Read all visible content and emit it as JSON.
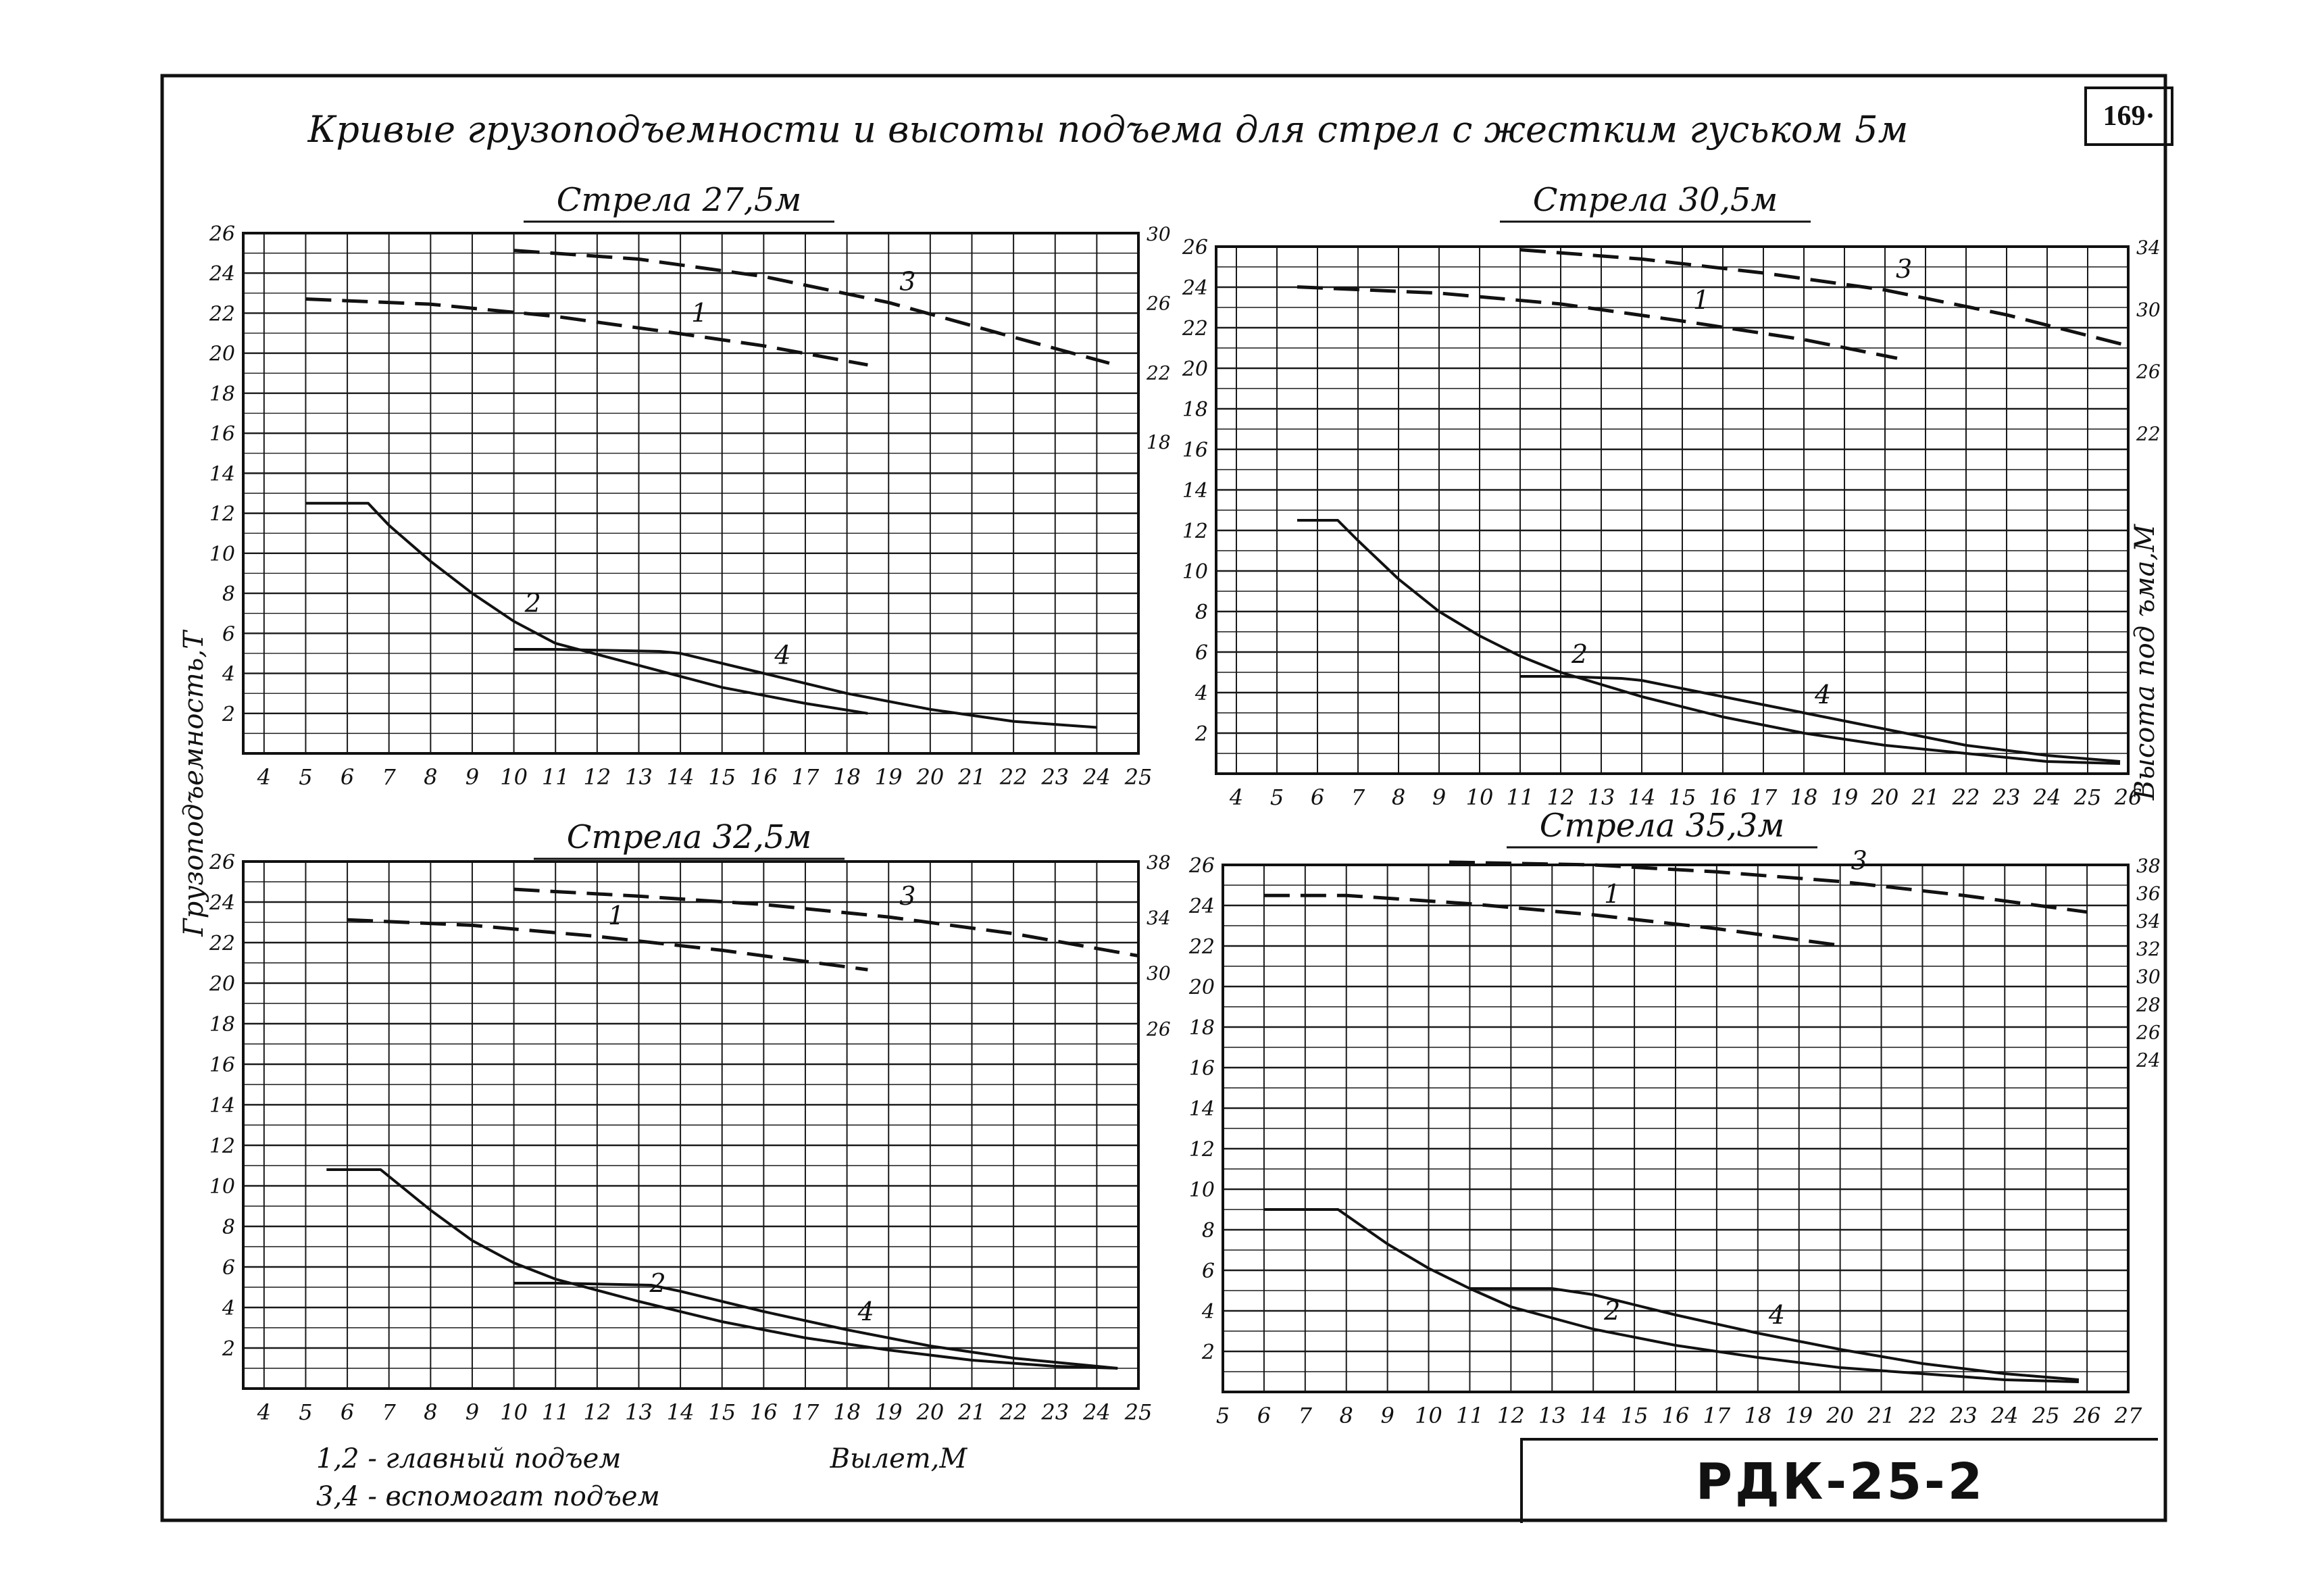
{
  "sheet": {
    "title": "Кривые грузоподъемности и высоты подъема для стрел с жестким гуськом 5м",
    "page_number": "169·",
    "code": "РДК-25-2",
    "ylabel_left": "Грузоподъемность,Т",
    "ylabel_right": "Высота под ъма,М",
    "xlabel": "Вылет,М",
    "legend_main": "1,2 - главный подъем",
    "legend_aux": "3,4 - вспомогат подъем",
    "colors": {
      "ink": "#111111",
      "grid": "#1a1a1a",
      "paper": "#ffffff"
    }
  },
  "chart_data": [
    {
      "type": "line",
      "title": "Стрела 27,5м",
      "xlabel": "Вылет,М",
      "ylabel": "Грузоподъемность,Т",
      "ylabel_right": "",
      "xlim": [
        3.5,
        25
      ],
      "ylim": [
        0,
        26
      ],
      "y2lim": [
        0,
        30
      ],
      "x_ticks": [
        4,
        5,
        6,
        7,
        8,
        9,
        10,
        11,
        12,
        13,
        14,
        15,
        16,
        17,
        18,
        19,
        20,
        21,
        22,
        23,
        24,
        25
      ],
      "y_ticks": [
        2,
        4,
        6,
        8,
        10,
        12,
        14,
        16,
        18,
        20,
        22,
        24,
        26
      ],
      "y2_ticks": [
        18,
        22,
        26,
        30
      ],
      "grid": true,
      "series": [
        {
          "name": "1",
          "axis": "right",
          "style": "dashed",
          "x": [
            5,
            8,
            11,
            14,
            16,
            18.5
          ],
          "y": [
            26.2,
            25.9,
            25.2,
            24.2,
            23.5,
            22.4
          ]
        },
        {
          "name": "2",
          "axis": "left",
          "style": "solid",
          "x": [
            5,
            6.5,
            7,
            8,
            9,
            10,
            11,
            13,
            15,
            17,
            18.5
          ],
          "y": [
            12.5,
            12.5,
            11.4,
            9.6,
            8,
            6.6,
            5.5,
            4.4,
            3.3,
            2.5,
            2
          ]
        },
        {
          "name": "3",
          "axis": "right",
          "style": "dashed",
          "x": [
            10,
            13,
            16,
            19,
            22,
            24.3
          ],
          "y": [
            29,
            28.5,
            27.5,
            26,
            24,
            22.5
          ]
        },
        {
          "name": "4",
          "axis": "left",
          "style": "solid",
          "x": [
            10,
            11,
            13.5,
            14,
            16,
            18,
            20,
            22,
            24
          ],
          "y": [
            5.2,
            5.2,
            5.1,
            5,
            4,
            3,
            2.2,
            1.6,
            1.3
          ]
        }
      ]
    },
    {
      "type": "line",
      "title": "Стрела 30,5м",
      "xlabel": "Вылет,М",
      "ylabel": "",
      "ylabel_right": "Высота под ъма,М",
      "xlim": [
        3.5,
        26
      ],
      "ylim": [
        0,
        26
      ],
      "y2lim": [
        0,
        34
      ],
      "x_ticks": [
        4,
        5,
        6,
        7,
        8,
        9,
        10,
        11,
        12,
        13,
        14,
        15,
        16,
        17,
        18,
        19,
        20,
        21,
        22,
        23,
        24,
        25,
        26
      ],
      "y_ticks": [
        2,
        4,
        6,
        8,
        10,
        12,
        14,
        16,
        18,
        20,
        22,
        24,
        26
      ],
      "y2_ticks": [
        22,
        26,
        30,
        34
      ],
      "grid": true,
      "series": [
        {
          "name": "1",
          "axis": "right",
          "style": "dashed",
          "x": [
            5.5,
            9,
            12,
            15,
            18,
            20.3
          ],
          "y": [
            31.4,
            31,
            30.3,
            29.2,
            28,
            26.8
          ]
        },
        {
          "name": "2",
          "axis": "left",
          "style": "solid",
          "x": [
            5.5,
            6.5,
            7,
            8,
            9,
            10,
            11,
            12,
            14,
            16,
            18,
            20,
            22,
            24,
            25.8
          ],
          "y": [
            12.5,
            12.5,
            11.5,
            9.6,
            8,
            6.8,
            5.8,
            5,
            3.8,
            2.8,
            2,
            1.4,
            1,
            0.6,
            0.5
          ]
        },
        {
          "name": "3",
          "axis": "right",
          "style": "dashed",
          "x": [
            11,
            14,
            17,
            20,
            23,
            26
          ],
          "y": [
            33.8,
            33.2,
            32.3,
            31.2,
            29.6,
            27.6
          ]
        },
        {
          "name": "4",
          "axis": "left",
          "style": "solid",
          "x": [
            11,
            12,
            13.5,
            14,
            16,
            18,
            20,
            22,
            24,
            25.8
          ],
          "y": [
            4.8,
            4.8,
            4.7,
            4.6,
            3.8,
            3,
            2.2,
            1.4,
            0.9,
            0.6
          ]
        }
      ]
    },
    {
      "type": "line",
      "title": "Стрела 32,5м",
      "xlabel": "Вылет,М",
      "ylabel": "Грузоподъемность,Т",
      "ylabel_right": "",
      "xlim": [
        3.5,
        25
      ],
      "ylim": [
        0,
        26
      ],
      "y2lim": [
        0,
        38
      ],
      "x_ticks": [
        4,
        5,
        6,
        7,
        8,
        9,
        10,
        11,
        12,
        13,
        14,
        15,
        16,
        17,
        18,
        19,
        20,
        21,
        22,
        23,
        24,
        25
      ],
      "y_ticks": [
        2,
        4,
        6,
        8,
        10,
        12,
        14,
        16,
        18,
        20,
        22,
        24,
        26
      ],
      "y2_ticks": [
        26,
        30,
        34,
        38
      ],
      "grid": true,
      "series": [
        {
          "name": "1",
          "axis": "right",
          "style": "dashed",
          "x": [
            6,
            9,
            12,
            15,
            18.5
          ],
          "y": [
            33.8,
            33.4,
            32.6,
            31.6,
            30.2
          ]
        },
        {
          "name": "2",
          "axis": "left",
          "style": "solid",
          "x": [
            5.5,
            6.8,
            8,
            9,
            10,
            11,
            13,
            15,
            17,
            19,
            21,
            23,
            24.5
          ],
          "y": [
            10.8,
            10.8,
            8.8,
            7.3,
            6.2,
            5.4,
            4.3,
            3.3,
            2.5,
            1.9,
            1.4,
            1.1,
            1
          ]
        },
        {
          "name": "3",
          "axis": "right",
          "style": "dashed",
          "x": [
            10,
            13,
            16,
            19,
            22,
            25
          ],
          "y": [
            36,
            35.5,
            34.9,
            34,
            32.8,
            31.2
          ]
        },
        {
          "name": "4",
          "axis": "left",
          "style": "solid",
          "x": [
            10,
            11,
            13.3,
            14,
            16,
            18,
            20,
            22,
            24,
            24.5
          ],
          "y": [
            5.2,
            5.2,
            5.1,
            4.8,
            3.8,
            2.9,
            2.1,
            1.5,
            1.1,
            1
          ]
        }
      ]
    },
    {
      "type": "line",
      "title": "Стрела 35,3м",
      "xlabel": "Вылет,М",
      "ylabel": "",
      "ylabel_right": "",
      "xlim": [
        5,
        27
      ],
      "ylim": [
        0,
        26
      ],
      "y2lim": [
        0,
        38
      ],
      "x_ticks": [
        5,
        6,
        7,
        8,
        9,
        10,
        11,
        12,
        13,
        14,
        15,
        16,
        17,
        18,
        19,
        20,
        21,
        22,
        23,
        24,
        25,
        26,
        27
      ],
      "y_ticks": [
        2,
        4,
        6,
        8,
        10,
        12,
        14,
        16,
        18,
        20,
        22,
        24,
        26
      ],
      "y2_ticks": [
        24,
        26,
        28,
        30,
        32,
        34,
        36,
        38
      ],
      "grid": true,
      "series": [
        {
          "name": "1",
          "axis": "right",
          "style": "dashed",
          "x": [
            6,
            8,
            11,
            14,
            17,
            20
          ],
          "y": [
            35.8,
            35.8,
            35.2,
            34.4,
            33.4,
            32.2
          ]
        },
        {
          "name": "2",
          "axis": "left",
          "style": "solid",
          "x": [
            6,
            7.8,
            9,
            10,
            11,
            12,
            14,
            16,
            18,
            20,
            22,
            24,
            25.8
          ],
          "y": [
            9,
            9,
            7.3,
            6.1,
            5.1,
            4.2,
            3.1,
            2.3,
            1.7,
            1.2,
            0.9,
            0.6,
            0.5
          ]
        },
        {
          "name": "3",
          "axis": "right",
          "style": "dashed",
          "x": [
            10.5,
            14,
            17,
            20,
            23,
            26
          ],
          "y": [
            38.2,
            38,
            37.5,
            36.8,
            35.8,
            34.6
          ]
        },
        {
          "name": "4",
          "axis": "left",
          "style": "solid",
          "x": [
            11,
            12,
            13,
            14,
            16,
            18,
            20,
            22,
            24,
            25.8
          ],
          "y": [
            5.1,
            5.1,
            5.1,
            4.8,
            3.8,
            2.9,
            2.1,
            1.4,
            0.9,
            0.6
          ]
        }
      ]
    }
  ]
}
